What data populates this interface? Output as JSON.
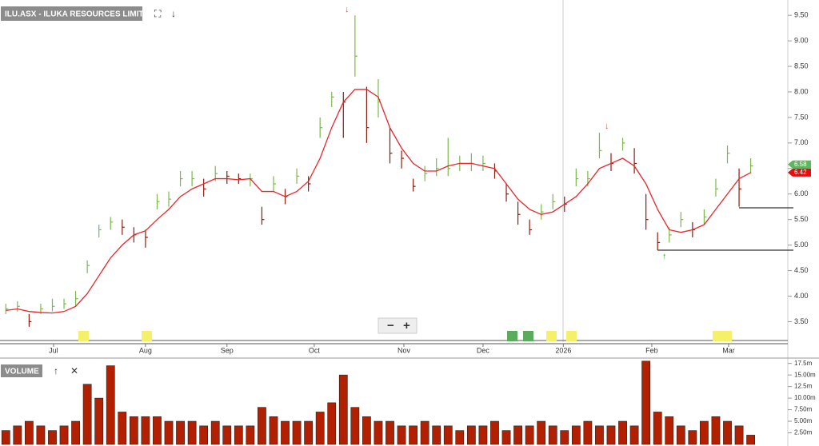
{
  "chart_data": {
    "type": "ohlc",
    "title": "ILU.ASX - ILUKA RESOURCES LIMITED",
    "volume_title": "VOLUME",
    "x": [
      0,
      1,
      2,
      3,
      4,
      5,
      6,
      7,
      8,
      9,
      10,
      11,
      12,
      13,
      14,
      15,
      16,
      17,
      18,
      19,
      20,
      21,
      22,
      23,
      24,
      25,
      26,
      27,
      28,
      29,
      30,
      31,
      32,
      33,
      34,
      35,
      36,
      37,
      38,
      39,
      40,
      41,
      42,
      43,
      44,
      45,
      46,
      47,
      48,
      49,
      50,
      51,
      52,
      53,
      54,
      55,
      56,
      57,
      58,
      59,
      60,
      61,
      62,
      63,
      64
    ],
    "xlim": [
      -0.5,
      66.5
    ],
    "xticks": [
      {
        "value": 4.1,
        "label": "Jul"
      },
      {
        "value": 12,
        "label": "Aug"
      },
      {
        "value": 19,
        "label": "Sep"
      },
      {
        "value": 26.5,
        "label": "Oct"
      },
      {
        "value": 34.2,
        "label": "Nov"
      },
      {
        "value": 41,
        "label": "Dec"
      },
      {
        "value": 47.9,
        "label": "2026"
      },
      {
        "value": 55.5,
        "label": "Feb"
      },
      {
        "value": 62.1,
        "label": "Mar"
      }
    ],
    "high": [
      3.85,
      3.9,
      3.65,
      3.85,
      3.95,
      3.95,
      4.1,
      4.7,
      5.4,
      5.55,
      5.5,
      5.35,
      5.3,
      6.0,
      6.05,
      6.45,
      6.45,
      6.3,
      6.55,
      6.45,
      6.4,
      6.4,
      5.75,
      6.35,
      6.1,
      6.5,
      6.35,
      7.5,
      8.0,
      8.0,
      9.5,
      8.1,
      8.25,
      7.3,
      6.85,
      6.3,
      6.55,
      6.7,
      7.1,
      6.75,
      6.8,
      6.75,
      6.6,
      6.2,
      5.85,
      5.5,
      5.8,
      6.0,
      5.95,
      6.5,
      6.45,
      7.2,
      6.8,
      7.1,
      6.9,
      6.0,
      5.25,
      5.35,
      5.65,
      5.45,
      5.7,
      6.3,
      6.95,
      6.5,
      6.7
    ],
    "low": [
      3.65,
      3.7,
      3.4,
      3.65,
      3.7,
      3.75,
      3.8,
      4.45,
      5.15,
      5.3,
      5.2,
      5.05,
      4.95,
      5.7,
      5.75,
      6.15,
      6.15,
      5.95,
      6.25,
      6.2,
      6.2,
      6.15,
      5.4,
      6.05,
      5.8,
      6.2,
      6.05,
      7.1,
      7.7,
      7.1,
      8.3,
      7.0,
      7.5,
      6.6,
      6.5,
      6.05,
      6.25,
      6.35,
      6.35,
      6.45,
      6.45,
      6.45,
      6.3,
      5.85,
      5.4,
      5.2,
      5.5,
      5.7,
      5.65,
      6.15,
      6.15,
      6.7,
      6.45,
      6.85,
      6.4,
      5.3,
      4.9,
      5.05,
      5.35,
      5.15,
      5.4,
      5.95,
      6.6,
      5.75,
      6.4
    ],
    "close": [
      3.75,
      3.8,
      3.5,
      3.75,
      3.8,
      3.85,
      3.95,
      4.6,
      5.3,
      5.45,
      5.35,
      5.2,
      5.15,
      5.85,
      5.9,
      6.3,
      6.3,
      6.1,
      6.4,
      6.35,
      6.3,
      6.3,
      5.5,
      6.2,
      5.95,
      6.35,
      6.2,
      7.3,
      7.9,
      7.8,
      8.7,
      7.3,
      7.8,
      6.8,
      6.7,
      6.15,
      6.4,
      6.5,
      6.5,
      6.6,
      6.6,
      6.6,
      6.45,
      6.0,
      5.6,
      5.3,
      5.65,
      5.85,
      5.8,
      6.3,
      6.3,
      6.85,
      6.6,
      7.0,
      6.6,
      5.5,
      5.05,
      5.2,
      5.5,
      5.3,
      5.55,
      6.1,
      6.8,
      6.1,
      6.55
    ],
    "moving_average": [
      3.72,
      3.75,
      3.7,
      3.68,
      3.67,
      3.7,
      3.8,
      4.05,
      4.4,
      4.75,
      5.0,
      5.2,
      5.28,
      5.5,
      5.7,
      5.95,
      6.1,
      6.2,
      6.3,
      6.3,
      6.28,
      6.3,
      6.05,
      6.05,
      5.95,
      6.05,
      6.25,
      6.7,
      7.3,
      7.8,
      8.05,
      8.05,
      7.9,
      7.3,
      6.9,
      6.6,
      6.45,
      6.45,
      6.55,
      6.6,
      6.6,
      6.55,
      6.5,
      6.2,
      5.9,
      5.7,
      5.6,
      5.65,
      5.8,
      5.95,
      6.2,
      6.5,
      6.6,
      6.7,
      6.55,
      6.2,
      5.7,
      5.3,
      5.25,
      5.3,
      5.4,
      5.7,
      6.0,
      6.3,
      6.42
    ],
    "volume": [
      3,
      4,
      5,
      4,
      3,
      4,
      5,
      13,
      10,
      17,
      7,
      6,
      6,
      6,
      5,
      5,
      5,
      4,
      5,
      4,
      4,
      4,
      8,
      6,
      5,
      5,
      5,
      7,
      9,
      15,
      8,
      6,
      5,
      5,
      4,
      4,
      5,
      4,
      4,
      3,
      4,
      4,
      5,
      3,
      4,
      4,
      5,
      4,
      3,
      4,
      5,
      4,
      4,
      5,
      4,
      18,
      7,
      6,
      4,
      3,
      5,
      6,
      5,
      4,
      2
    ],
    "up_color": "#7cb84a",
    "down_color": "#8a1c10",
    "ma_color": "#e8262a",
    "volume_color": "#b22000",
    "ylim": [
      3.1,
      9.8
    ],
    "yticks": [
      {
        "value": 3.5,
        "label": "3.50"
      },
      {
        "value": 4,
        "label": "4.00"
      },
      {
        "value": 4.5,
        "label": "4.50"
      },
      {
        "value": 5,
        "label": "5.00"
      },
      {
        "value": 5.5,
        "label": "5.50"
      },
      {
        "value": 6,
        "label": "6.00"
      },
      {
        "value": 6.5,
        "label": "6.50"
      },
      {
        "value": 7,
        "label": "7.00"
      },
      {
        "value": 7.5,
        "label": "7.50"
      },
      {
        "value": 8,
        "label": "8.00"
      },
      {
        "value": 8.5,
        "label": "8.50"
      },
      {
        "value": 9,
        "label": "9.00"
      },
      {
        "value": 9.5,
        "label": "9.50"
      }
    ],
    "volume_ylim": [
      0,
      19
    ],
    "volume_yticks": [
      {
        "value": 2.5,
        "label": "2.50m"
      },
      {
        "value": 5,
        "label": "5.00m"
      },
      {
        "value": 7.5,
        "label": "7.50m"
      },
      {
        "value": 10,
        "label": "10.00m"
      },
      {
        "value": 12.5,
        "label": "12.5m"
      },
      {
        "value": 15,
        "label": "15.00m"
      },
      {
        "value": 17.5,
        "label": "17.5m"
      }
    ],
    "price_labels": [
      {
        "value": 6.58,
        "label": "6.58",
        "color": "#5cb85c"
      },
      {
        "value": 6.42,
        "label": "6.42",
        "color": "#e01010"
      }
    ],
    "levels": [
      {
        "value": 5.73,
        "start_x": 63
      },
      {
        "value": 4.9,
        "start_x": 56
      }
    ]
  }
}
